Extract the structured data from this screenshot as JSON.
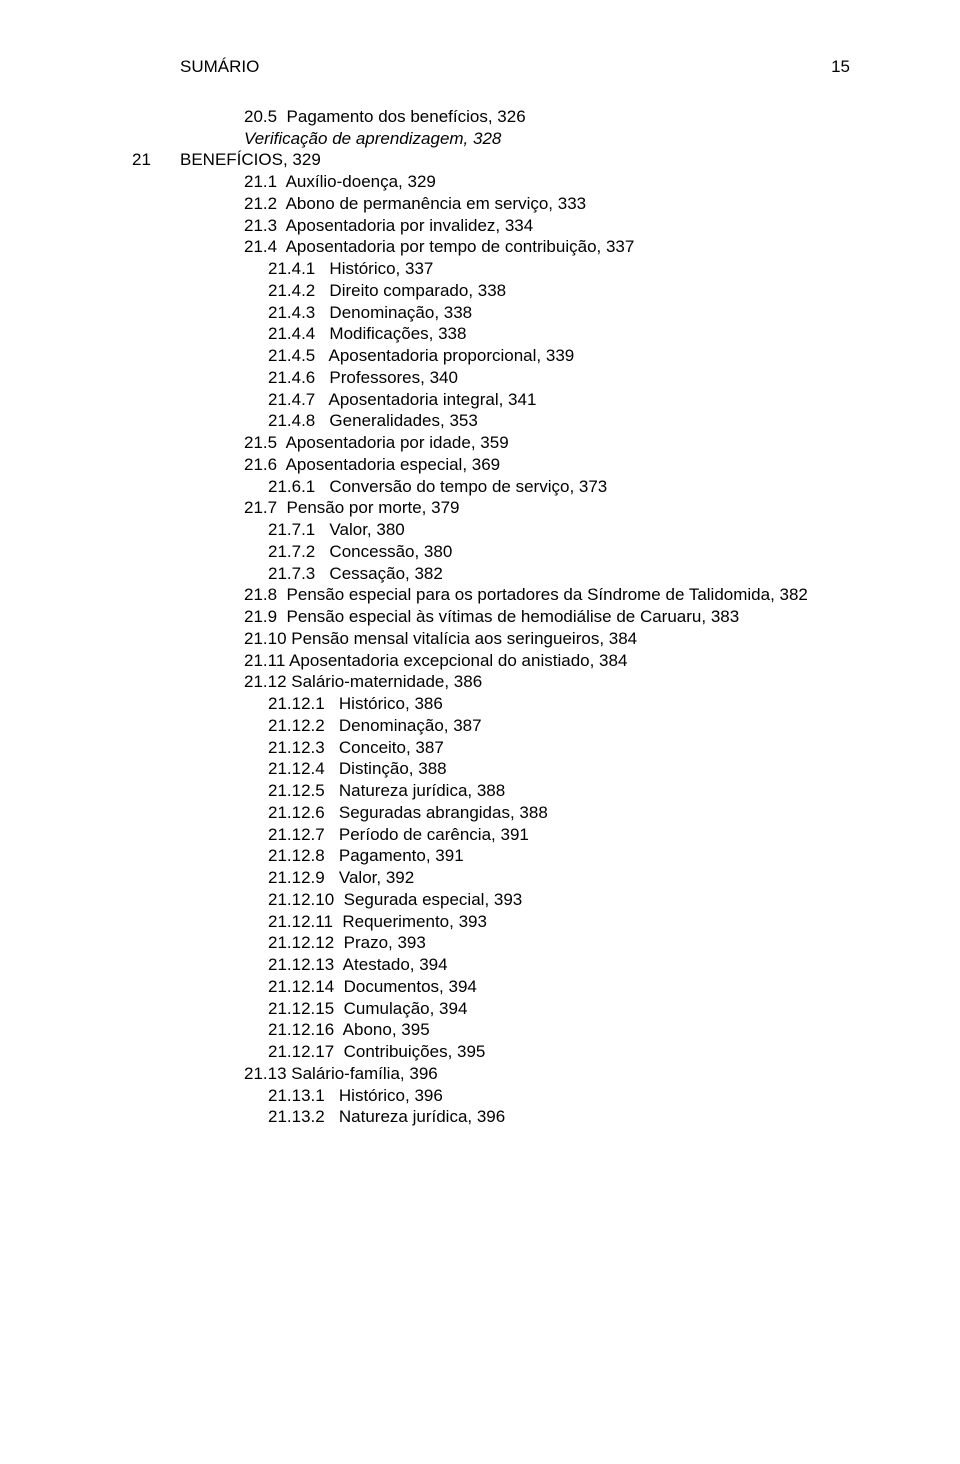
{
  "header": {
    "title": "SUMÁRIO",
    "page_number": "15"
  },
  "chapter21_label": "21",
  "lines": [
    {
      "indent": 1,
      "italic": false,
      "text": "20.5  Pagamento dos benefícios, 326"
    },
    {
      "indent": 1,
      "italic": true,
      "text": "Verificação de aprendizagem, 328"
    },
    {
      "indent": 0,
      "italic": false,
      "chapter": "21",
      "text": "BENEFÍCIOS, 329"
    },
    {
      "indent": 1,
      "italic": false,
      "text": "21.1  Auxílio-doença, 329"
    },
    {
      "indent": 1,
      "italic": false,
      "text": "21.2  Abono de permanência em serviço, 333"
    },
    {
      "indent": 1,
      "italic": false,
      "text": "21.3  Aposentadoria por invalidez, 334"
    },
    {
      "indent": 1,
      "italic": false,
      "text": "21.4  Aposentadoria por tempo de contribuição, 337"
    },
    {
      "indent": 2,
      "italic": false,
      "text": "21.4.1   Histórico, 337"
    },
    {
      "indent": 2,
      "italic": false,
      "text": "21.4.2   Direito comparado, 338"
    },
    {
      "indent": 2,
      "italic": false,
      "text": "21.4.3   Denominação, 338"
    },
    {
      "indent": 2,
      "italic": false,
      "text": "21.4.4   Modificações, 338"
    },
    {
      "indent": 2,
      "italic": false,
      "text": "21.4.5   Aposentadoria proporcional, 339"
    },
    {
      "indent": 2,
      "italic": false,
      "text": "21.4.6   Professores, 340"
    },
    {
      "indent": 2,
      "italic": false,
      "text": "21.4.7   Aposentadoria integral, 341"
    },
    {
      "indent": 2,
      "italic": false,
      "text": "21.4.8   Generalidades, 353"
    },
    {
      "indent": 1,
      "italic": false,
      "text": "21.5  Aposentadoria por idade, 359"
    },
    {
      "indent": 1,
      "italic": false,
      "text": "21.6  Aposentadoria especial, 369"
    },
    {
      "indent": 2,
      "italic": false,
      "text": "21.6.1   Conversão do tempo de serviço, 373"
    },
    {
      "indent": 1,
      "italic": false,
      "text": "21.7  Pensão por morte, 379"
    },
    {
      "indent": 2,
      "italic": false,
      "text": "21.7.1   Valor, 380"
    },
    {
      "indent": 2,
      "italic": false,
      "text": "21.7.2   Concessão, 380"
    },
    {
      "indent": 2,
      "italic": false,
      "text": "21.7.3   Cessação, 382"
    },
    {
      "indent": 1,
      "italic": false,
      "text": "21.8  Pensão especial para os portadores da Síndrome de Talidomida, 382"
    },
    {
      "indent": 1,
      "italic": false,
      "text": "21.9  Pensão especial às vítimas de hemodiálise de Caruaru, 383"
    },
    {
      "indent": 1,
      "italic": false,
      "text": "21.10 Pensão mensal vitalícia aos seringueiros, 384"
    },
    {
      "indent": 1,
      "italic": false,
      "text": "21.11 Aposentadoria excepcional do anistiado, 384"
    },
    {
      "indent": 1,
      "italic": false,
      "text": "21.12 Salário-maternidade, 386"
    },
    {
      "indent": 2,
      "italic": false,
      "text": "21.12.1   Histórico, 386"
    },
    {
      "indent": 2,
      "italic": false,
      "text": "21.12.2   Denominação, 387"
    },
    {
      "indent": 2,
      "italic": false,
      "text": "21.12.3   Conceito, 387"
    },
    {
      "indent": 2,
      "italic": false,
      "text": "21.12.4   Distinção, 388"
    },
    {
      "indent": 2,
      "italic": false,
      "text": "21.12.5   Natureza jurídica, 388"
    },
    {
      "indent": 2,
      "italic": false,
      "text": "21.12.6   Seguradas abrangidas, 388"
    },
    {
      "indent": 2,
      "italic": false,
      "text": "21.12.7   Período de carência, 391"
    },
    {
      "indent": 2,
      "italic": false,
      "text": "21.12.8   Pagamento, 391"
    },
    {
      "indent": 2,
      "italic": false,
      "text": "21.12.9   Valor, 392"
    },
    {
      "indent": 2,
      "italic": false,
      "text": "21.12.10  Segurada especial, 393"
    },
    {
      "indent": 2,
      "italic": false,
      "text": "21.12.11  Requerimento, 393"
    },
    {
      "indent": 2,
      "italic": false,
      "text": "21.12.12  Prazo, 393"
    },
    {
      "indent": 2,
      "italic": false,
      "text": "21.12.13  Atestado, 394"
    },
    {
      "indent": 2,
      "italic": false,
      "text": "21.12.14  Documentos, 394"
    },
    {
      "indent": 2,
      "italic": false,
      "text": "21.12.15  Cumulação, 394"
    },
    {
      "indent": 2,
      "italic": false,
      "text": "21.12.16  Abono, 395"
    },
    {
      "indent": 2,
      "italic": false,
      "text": "21.12.17  Contribuições, 395"
    },
    {
      "indent": 1,
      "italic": false,
      "text": "21.13 Salário-família, 396"
    },
    {
      "indent": 2,
      "italic": false,
      "text": "21.13.1   Histórico, 396"
    },
    {
      "indent": 2,
      "italic": false,
      "text": "21.13.2   Natureza jurídica, 396"
    }
  ]
}
